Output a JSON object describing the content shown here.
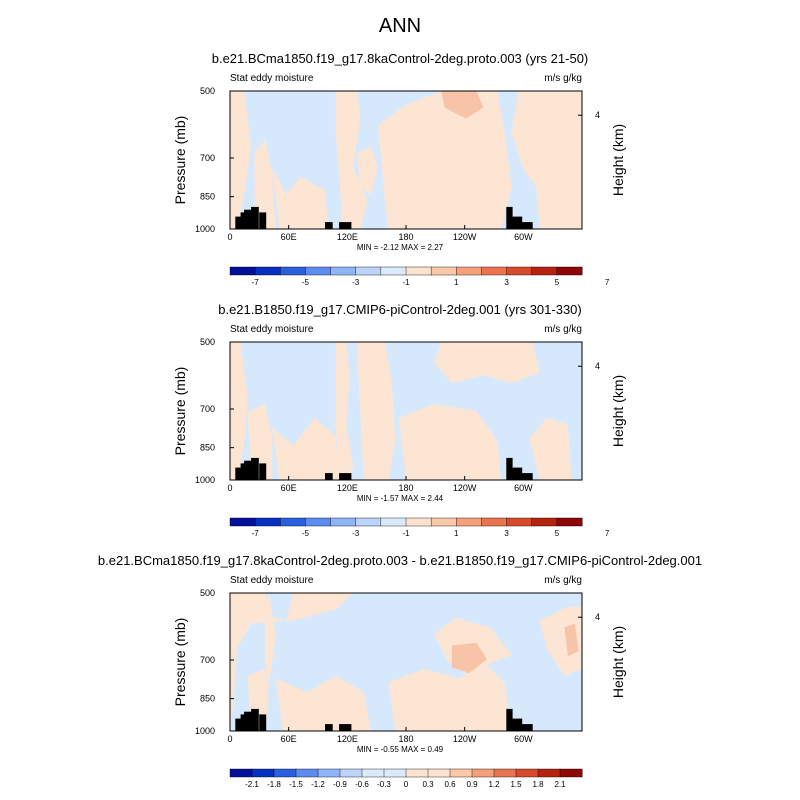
{
  "figure": {
    "title": "ANN"
  },
  "chart_data": [
    {
      "type": "heatmap",
      "title": "b.e21.BCma1850.f19_g17.8kaControl-2deg.proto.003 (yrs 21-50)",
      "left_label": "Stat eddy moisture",
      "right_label": "m/s g/kg",
      "ylabel": "Pressure (mb)",
      "ylabel_right": "Height (km)",
      "x_ticks": [
        "0",
        "60E",
        "120E",
        "180",
        "120W",
        "60W"
      ],
      "x_tick_values": [
        0,
        60,
        120,
        180,
        240,
        300
      ],
      "xlim": [
        0,
        360
      ],
      "y_ticks": [
        "500",
        "700",
        "850",
        "1000"
      ],
      "y_tick_values": [
        500,
        700,
        850,
        1000
      ],
      "ylim": [
        1000,
        500
      ],
      "right_ticks": [
        "4"
      ],
      "right_tick_values": [
        4
      ],
      "min": "-2.12",
      "max": "2.27",
      "stats_text": "MIN =  -2.12   MAX =   2.27",
      "colorbar": {
        "labels": [
          "-7",
          "-5",
          "-3",
          "-1",
          "1",
          "3",
          "5",
          "7"
        ],
        "colors": [
          "#03109a",
          "#0630c0",
          "#2a5fe0",
          "#5d8cf0",
          "#8fb4f8",
          "#bcd3fa",
          "#daeafb",
          "#fde2cf",
          "#fbc8a8",
          "#f5a07a",
          "#ea744f",
          "#d84a2c",
          "#b52212",
          "#8f0606"
        ],
        "label_positions": [
          1,
          3,
          5,
          7,
          9,
          11,
          13,
          15
        ]
      },
      "contour_levels": [
        -1,
        1
      ],
      "fill_colors": {
        "negative": "#d6e8fb",
        "positive": "#fde5d4",
        "strong_positive": "#f8c4a8"
      }
    },
    {
      "type": "heatmap",
      "title": "b.e21.B1850.f19_g17.CMIP6-piControl-2deg.001 (yrs 301-330)",
      "left_label": "Stat eddy moisture",
      "right_label": "m/s g/kg",
      "ylabel": "Pressure (mb)",
      "ylabel_right": "Height (km)",
      "x_ticks": [
        "0",
        "60E",
        "120E",
        "180",
        "120W",
        "60W"
      ],
      "x_tick_values": [
        0,
        60,
        120,
        180,
        240,
        300
      ],
      "xlim": [
        0,
        360
      ],
      "y_ticks": [
        "500",
        "700",
        "850",
        "1000"
      ],
      "y_tick_values": [
        500,
        700,
        850,
        1000
      ],
      "ylim": [
        1000,
        500
      ],
      "right_ticks": [
        "4"
      ],
      "right_tick_values": [
        4
      ],
      "min": "-1.57",
      "max": "2.44",
      "stats_text": "MIN =  -1.57   MAX =   2.44",
      "colorbar": {
        "labels": [
          "-7",
          "-5",
          "-3",
          "-1",
          "1",
          "3",
          "5",
          "7"
        ],
        "colors": [
          "#03109a",
          "#0630c0",
          "#2a5fe0",
          "#5d8cf0",
          "#8fb4f8",
          "#bcd3fa",
          "#daeafb",
          "#fde2cf",
          "#fbc8a8",
          "#f5a07a",
          "#ea744f",
          "#d84a2c",
          "#b52212",
          "#8f0606"
        ],
        "label_positions": [
          1,
          3,
          5,
          7,
          9,
          11,
          13,
          15
        ]
      },
      "contour_levels": [
        -1,
        1
      ],
      "fill_colors": {
        "negative": "#d6e8fb",
        "positive": "#fde5d4",
        "strong_positive": "#f8c4a8"
      }
    },
    {
      "type": "heatmap",
      "title": "b.e21.BCma1850.f19_g17.8kaControl-2deg.proto.003 - b.e21.B1850.f19_g17.CMIP6-piControl-2deg.001",
      "left_label": "Stat eddy moisture",
      "right_label": "m/s g/kg",
      "ylabel": "Pressure (mb)",
      "ylabel_right": "Height (km)",
      "x_ticks": [
        "0",
        "60E",
        "120E",
        "180",
        "120W",
        "60W"
      ],
      "x_tick_values": [
        0,
        60,
        120,
        180,
        240,
        300
      ],
      "xlim": [
        0,
        360
      ],
      "y_ticks": [
        "500",
        "700",
        "850",
        "1000"
      ],
      "y_tick_values": [
        500,
        700,
        850,
        1000
      ],
      "ylim": [
        1000,
        500
      ],
      "right_ticks": [
        "4"
      ],
      "right_tick_values": [
        4
      ],
      "min": "-0.55",
      "max": "0.49",
      "stats_text": "MIN =  -0.55   MAX =   0.49",
      "colorbar": {
        "labels": [
          "-2.1",
          "-1.8",
          "-1.5",
          "-1.2",
          "-0.9",
          "-0.6",
          "-0.3",
          "0",
          "0.3",
          "0.6",
          "0.9",
          "1.2",
          "1.5",
          "1.8",
          "2.1"
        ],
        "colors": [
          "#03109a",
          "#0630c0",
          "#2a5fe0",
          "#5d8cf0",
          "#8fb4f8",
          "#bcd3fa",
          "#daeafb",
          "#daeafb",
          "#fde2cf",
          "#fde2cf",
          "#fbc8a8",
          "#f5a07a",
          "#ea744f",
          "#d84a2c",
          "#b52212",
          "#8f0606"
        ],
        "label_positions": [
          1,
          2,
          3,
          4,
          5,
          6,
          7,
          8,
          9,
          10,
          11,
          12,
          13,
          14,
          15
        ]
      },
      "contour_levels": [
        -0.3,
        0.3
      ],
      "fill_colors": {
        "negative": "#d6e8fb",
        "positive": "#fde5d4",
        "strong_positive": "#f8c4a8"
      }
    }
  ]
}
